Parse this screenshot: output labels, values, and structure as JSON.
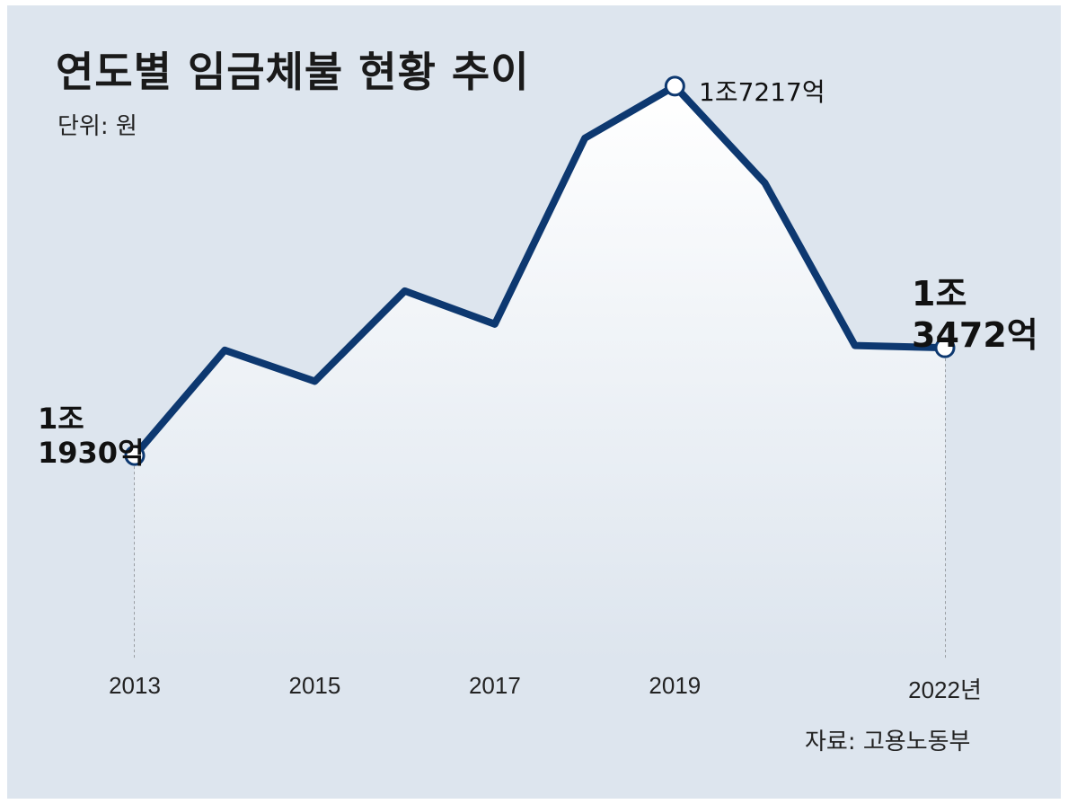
{
  "title": "연도별 임금체불 현황 추이",
  "unit_label": "단위: 원",
  "source": "자료: 고용노동부",
  "colors": {
    "background": "#dde5ee",
    "line": "#0d3870",
    "area_top": "#ffffff",
    "area_bottom": "#dde5ee",
    "marker_fill": "#ffffff"
  },
  "chart_data": {
    "type": "area",
    "title": "연도별 임금체불 현황 추이",
    "x": [
      2013,
      2014,
      2015,
      2016,
      2017,
      2018,
      2019,
      2020,
      2021,
      2022
    ],
    "values": [
      11930,
      13438,
      12993,
      14286,
      13811,
      16472,
      17217,
      15830,
      13505,
      13472
    ],
    "value_unit": "억 원",
    "x_tick_labels": [
      "2013",
      "2015",
      "2017",
      "2019",
      "2022년"
    ],
    "x_tick_positions": [
      2013,
      2015,
      2017,
      2019,
      2022
    ],
    "ylim": [
      9000,
      18000
    ],
    "grid": false,
    "legend": "none",
    "annotations": [
      {
        "x": 2013,
        "lines": [
          "1조",
          "1930억"
        ]
      },
      {
        "x": 2019,
        "lines": [
          "1조7217억"
        ]
      },
      {
        "x": 2022,
        "lines": [
          "1조",
          "3472억"
        ]
      }
    ]
  }
}
